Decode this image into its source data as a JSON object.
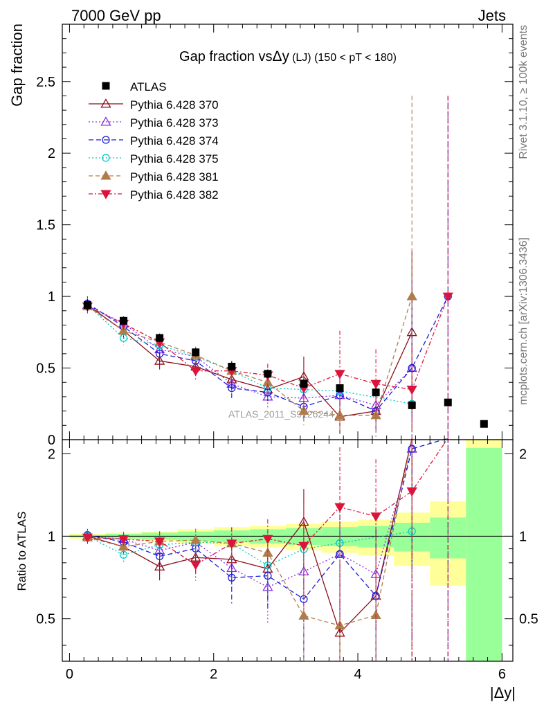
{
  "header": {
    "left": "7000 GeV pp",
    "right": "Jets"
  },
  "side": {
    "rivet": "Rivet 3.1.10, ≥ 100k events",
    "mcplots": "mcplots.cern.ch [arXiv:1306.3436]"
  },
  "chart_data": {
    "type": "line",
    "title": "Gap fraction vsΔy (LJ) (150 < pT < 180)",
    "title_main": "Gap fraction vs",
    "title_sym": "Δy",
    "title_tail": "(LJ) (150 < pT < 180)",
    "xlabel": "|Δy|",
    "ylabel": "Gap fraction",
    "ratio_ylabel": "Ratio to ATLAS",
    "watermark": "ATLAS_2011_S9126244",
    "xlim": [
      -0.1,
      6.15
    ],
    "ylim": [
      0,
      2.9
    ],
    "ratio_ylim": [
      0.35,
      2.25
    ],
    "x_ticks": [
      "0",
      "2",
      "4",
      "6"
    ],
    "y_ticks": [
      "0",
      "0.5",
      "1",
      "1.5",
      "2",
      "2.5"
    ],
    "ratio_ticks": [
      "0.5",
      "1",
      "2"
    ],
    "x": [
      0.25,
      0.75,
      1.25,
      1.75,
      2.25,
      2.75,
      3.25,
      3.75,
      4.25,
      4.75,
      5.25,
      5.75
    ],
    "data_series": {
      "name": "ATLAS",
      "values": [
        0.94,
        0.83,
        0.71,
        0.61,
        0.51,
        0.46,
        0.39,
        0.36,
        0.33,
        0.24,
        0.26,
        0.11
      ],
      "errors": [
        0.04,
        0.03,
        0.03,
        0.03,
        0.03,
        0.03,
        0.03,
        0.03,
        0.03,
        0.03,
        0.02,
        0.02
      ]
    },
    "ratio_bands": {
      "edges": [
        0,
        0.5,
        1,
        1.5,
        2,
        2.5,
        3,
        3.5,
        4,
        4.5,
        5,
        5.5,
        6
      ],
      "inner": [
        0.01,
        0.02,
        0.03,
        0.04,
        0.05,
        0.06,
        0.07,
        0.08,
        0.09,
        0.12,
        0.17,
        1.1
      ],
      "outer": [
        0.02,
        0.03,
        0.04,
        0.06,
        0.08,
        0.09,
        0.11,
        0.13,
        0.15,
        0.22,
        0.34,
        1.25
      ]
    },
    "legend_position": "top-left",
    "series": [
      {
        "name": "Pythia 6.428 370",
        "color": "#8b0d1a",
        "dash": "",
        "marker": "triangle-open",
        "values": [
          0.94,
          0.76,
          0.55,
          0.51,
          0.42,
          0.35,
          0.44,
          0.16,
          0.2,
          0.75,
          null,
          null
        ],
        "errors": [
          0.05,
          0.05,
          0.06,
          0.06,
          0.07,
          0.08,
          0.14,
          0.12,
          0.15,
          0.57,
          null,
          null
        ]
      },
      {
        "name": "Pythia 6.428 373",
        "color": "#8a2be2",
        "dash": "2,3",
        "marker": "triangle-open",
        "values": [
          0.94,
          0.81,
          0.63,
          0.58,
          0.39,
          0.3,
          0.29,
          0.31,
          0.24,
          0.5,
          null,
          null
        ],
        "errors": [
          0.05,
          0.05,
          0.06,
          0.06,
          0.07,
          0.08,
          0.1,
          0.12,
          0.15,
          0.4,
          null,
          null
        ]
      },
      {
        "name": "Pythia 6.428 374",
        "color": "#1c1cd8",
        "dash": "7,4",
        "marker": "circle-open",
        "values": [
          0.95,
          0.79,
          0.6,
          0.55,
          0.36,
          0.33,
          0.23,
          0.31,
          0.2,
          0.5,
          1.0,
          null
        ],
        "errors": [
          0.05,
          0.05,
          0.06,
          0.06,
          0.07,
          0.08,
          0.1,
          0.12,
          0.15,
          0.6,
          1.4,
          null
        ]
      },
      {
        "name": "Pythia 6.428 375",
        "color": "#00c8c8",
        "dash": "2,3",
        "marker": "circle-open",
        "values": [
          0.94,
          0.71,
          0.66,
          0.58,
          0.48,
          0.36,
          0.35,
          0.34,
          null,
          0.25,
          null,
          null
        ],
        "errors": [
          0.05,
          0.05,
          0.06,
          0.06,
          0.07,
          0.08,
          0.1,
          0.12,
          null,
          0.15,
          null,
          null
        ]
      },
      {
        "name": "Pythia 6.428 381",
        "color": "#b07d4a",
        "dash": "6,4",
        "marker": "triangle-up",
        "values": [
          0.93,
          0.76,
          0.68,
          0.59,
          0.48,
          0.4,
          0.2,
          0.17,
          0.17,
          1.0,
          null,
          null
        ],
        "errors": [
          0.05,
          0.05,
          0.06,
          0.06,
          0.07,
          0.08,
          0.1,
          0.12,
          0.15,
          1.4,
          null,
          null
        ]
      },
      {
        "name": "Pythia 6.428 382",
        "color": "#dc143c",
        "dash": "6,3,2,3",
        "marker": "triangle-down",
        "values": [
          0.93,
          0.81,
          0.68,
          0.48,
          0.48,
          0.45,
          0.36,
          0.46,
          0.39,
          0.35,
          1.0,
          null
        ],
        "errors": [
          0.05,
          0.05,
          0.06,
          0.06,
          0.07,
          0.08,
          0.15,
          0.3,
          0.24,
          0.3,
          1.4,
          null
        ]
      }
    ]
  }
}
